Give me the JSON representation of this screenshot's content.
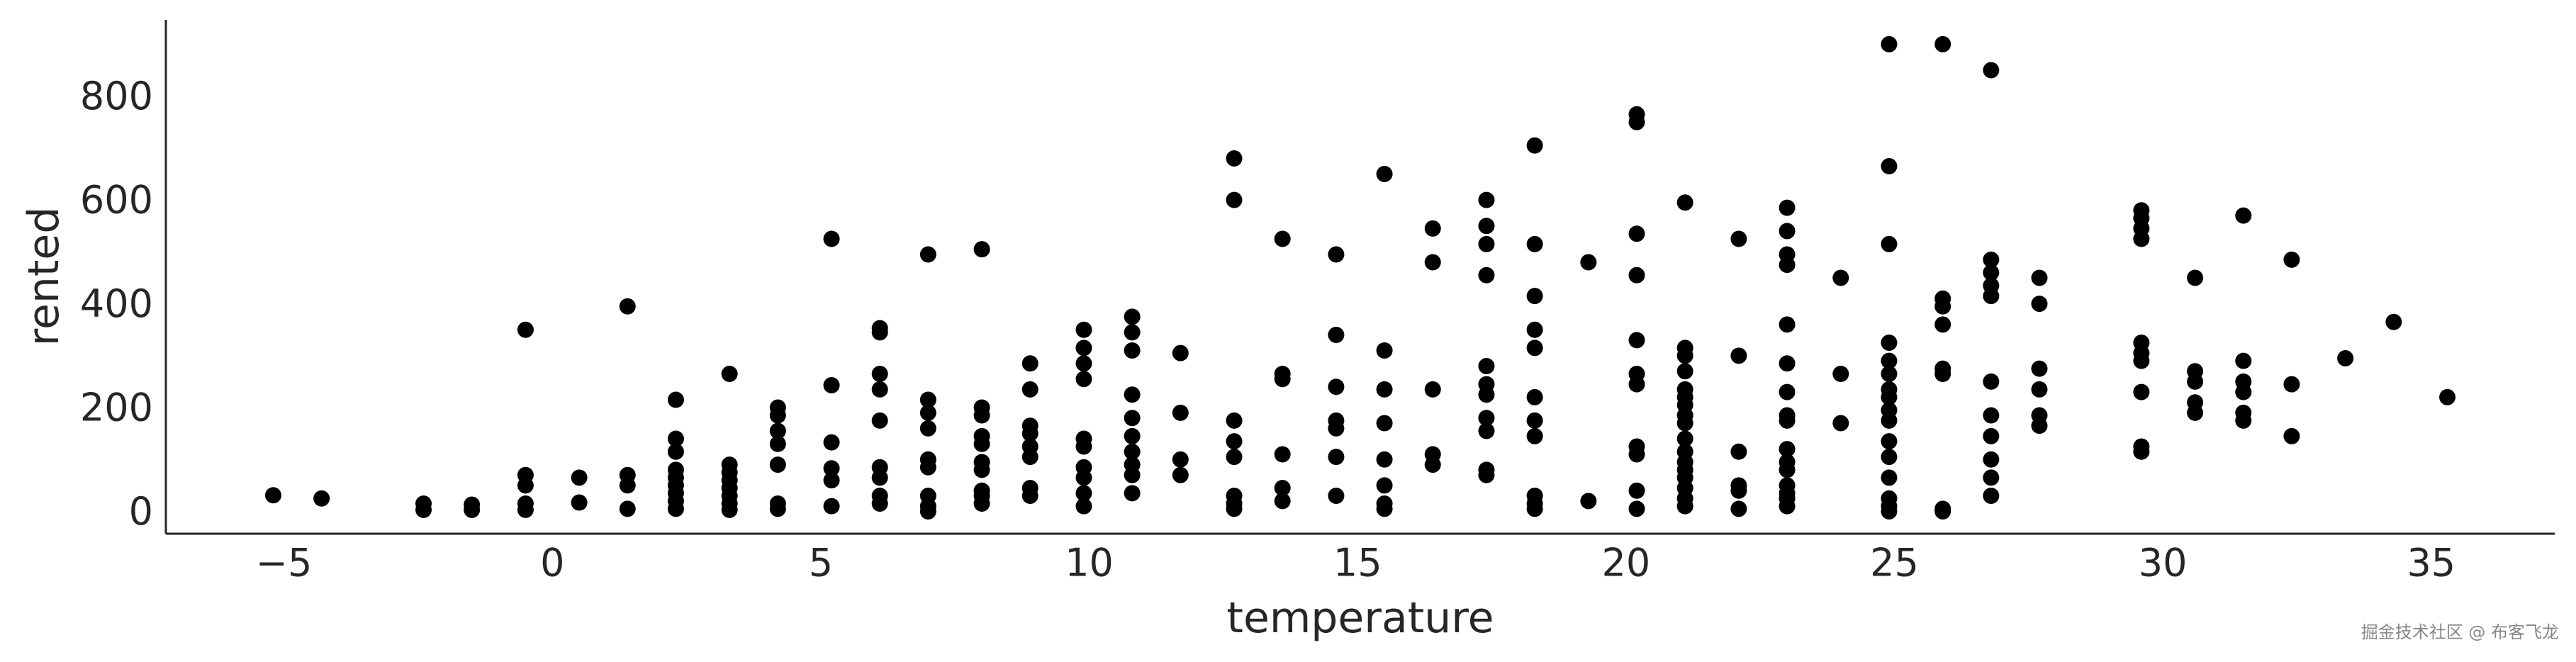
{
  "chart_data": {
    "type": "scatter",
    "x_label": "temperature",
    "y_label": "rented",
    "color": "#000000",
    "x": [
      -5.2,
      -4.3,
      -2.4,
      -2.4,
      -1.5,
      -1.5,
      -0.5,
      -0.5,
      -0.5,
      -0.5,
      -0.5,
      0.5,
      0.5,
      1.4,
      1.4,
      1.4,
      1.4,
      2.3,
      2.3,
      2.3,
      2.3,
      2.3,
      2.3,
      2.3,
      2.3,
      2.3,
      3.3,
      3.3,
      3.3,
      3.3,
      3.3,
      3.3,
      3.3,
      3.3,
      4.2,
      4.2,
      4.2,
      4.2,
      4.2,
      4.2,
      4.2,
      5.2,
      5.2,
      5.2,
      5.2,
      5.2,
      5.2,
      6.1,
      6.1,
      6.1,
      6.1,
      6.1,
      6.1,
      6.1,
      6.1,
      6.1,
      7.0,
      7.0,
      7.0,
      7.0,
      7.0,
      7.0,
      7.0,
      7.0,
      7.0,
      8.0,
      8.0,
      8.0,
      8.0,
      8.0,
      8.0,
      8.0,
      8.0,
      8.0,
      8.0,
      8.9,
      8.9,
      8.9,
      8.9,
      8.9,
      8.9,
      8.9,
      8.9,
      9.9,
      9.9,
      9.9,
      9.9,
      9.9,
      9.9,
      9.9,
      9.9,
      9.9,
      9.9,
      10.8,
      10.8,
      10.8,
      10.8,
      10.8,
      10.8,
      10.8,
      10.8,
      10.8,
      10.8,
      11.7,
      11.7,
      11.7,
      11.7,
      12.7,
      12.7,
      12.7,
      12.7,
      12.7,
      12.7,
      12.7,
      12.7,
      13.6,
      13.6,
      13.6,
      13.6,
      13.6,
      13.6,
      14.6,
      14.6,
      14.6,
      14.6,
      14.6,
      14.6,
      14.6,
      15.5,
      15.5,
      15.5,
      15.5,
      15.5,
      15.5,
      15.5,
      15.5,
      16.4,
      16.4,
      16.4,
      16.4,
      16.4,
      17.4,
      17.4,
      17.4,
      17.4,
      17.4,
      17.4,
      17.4,
      17.4,
      17.4,
      17.4,
      17.4,
      18.3,
      18.3,
      18.3,
      18.3,
      18.3,
      18.3,
      18.3,
      18.3,
      18.3,
      18.3,
      18.3,
      19.3,
      19.3,
      20.2,
      20.2,
      20.2,
      20.2,
      20.2,
      20.2,
      20.2,
      20.2,
      20.2,
      20.2,
      20.2,
      21.1,
      21.1,
      21.1,
      21.1,
      21.1,
      21.1,
      21.1,
      21.1,
      21.1,
      21.1,
      21.1,
      21.1,
      21.1,
      21.1,
      21.1,
      21.1,
      21.1,
      22.1,
      22.1,
      22.1,
      22.1,
      22.1,
      22.1,
      23.0,
      23.0,
      23.0,
      23.0,
      23.0,
      23.0,
      23.0,
      23.0,
      23.0,
      23.0,
      23.0,
      23.0,
      23.0,
      23.0,
      23.0,
      23.0,
      24.0,
      24.0,
      24.0,
      24.9,
      24.9,
      24.9,
      24.9,
      24.9,
      24.9,
      24.9,
      24.9,
      24.9,
      24.9,
      24.9,
      24.9,
      24.9,
      24.9,
      24.9,
      24.9,
      25.9,
      25.9,
      25.9,
      25.9,
      25.9,
      25.9,
      25.9,
      25.9,
      26.8,
      26.8,
      26.8,
      26.8,
      26.8,
      26.8,
      26.8,
      26.8,
      26.8,
      26.8,
      26.8,
      27.7,
      27.7,
      27.7,
      27.7,
      27.7,
      27.7,
      29.6,
      29.6,
      29.6,
      29.6,
      29.6,
      29.6,
      29.6,
      29.6,
      29.6,
      29.6,
      30.6,
      30.6,
      30.6,
      30.6,
      30.6,
      31.5,
      31.5,
      31.5,
      31.5,
      31.5,
      31.5,
      32.4,
      32.4,
      32.4,
      33.4,
      34.3,
      35.3
    ],
    "values": [
      36,
      30,
      20,
      8,
      18,
      8,
      355,
      75,
      55,
      20,
      8,
      70,
      22,
      400,
      75,
      55,
      10,
      220,
      145,
      120,
      85,
      70,
      55,
      40,
      25,
      10,
      270,
      95,
      80,
      65,
      50,
      35,
      20,
      8,
      205,
      190,
      160,
      135,
      95,
      20,
      10,
      530,
      248,
      138,
      88,
      65,
      15,
      358,
      350,
      270,
      240,
      180,
      90,
      70,
      35,
      20,
      500,
      220,
      195,
      165,
      105,
      90,
      35,
      15,
      5,
      510,
      205,
      190,
      150,
      135,
      100,
      85,
      45,
      35,
      20,
      290,
      240,
      170,
      155,
      130,
      110,
      50,
      35,
      355,
      320,
      290,
      260,
      145,
      130,
      90,
      70,
      40,
      15,
      380,
      350,
      315,
      230,
      185,
      150,
      120,
      95,
      75,
      40,
      310,
      195,
      105,
      75,
      685,
      605,
      180,
      140,
      110,
      35,
      20,
      10,
      530,
      270,
      260,
      115,
      50,
      25,
      500,
      345,
      245,
      180,
      165,
      110,
      35,
      655,
      315,
      240,
      175,
      105,
      55,
      20,
      10,
      550,
      485,
      240,
      115,
      95,
      605,
      555,
      520,
      460,
      285,
      250,
      230,
      185,
      160,
      85,
      75,
      710,
      520,
      420,
      355,
      320,
      225,
      180,
      150,
      35,
      20,
      10,
      485,
      25,
      770,
      755,
      540,
      460,
      335,
      270,
      250,
      130,
      115,
      45,
      10,
      600,
      320,
      305,
      275,
      240,
      225,
      210,
      190,
      175,
      145,
      120,
      100,
      85,
      70,
      50,
      30,
      15,
      530,
      305,
      120,
      55,
      45,
      10,
      590,
      545,
      500,
      480,
      365,
      290,
      235,
      190,
      180,
      125,
      100,
      85,
      55,
      40,
      30,
      15,
      455,
      270,
      175,
      905,
      670,
      520,
      330,
      295,
      270,
      240,
      225,
      200,
      180,
      140,
      110,
      70,
      30,
      15,
      5,
      905,
      415,
      400,
      365,
      280,
      270,
      10,
      5,
      855,
      490,
      465,
      440,
      420,
      255,
      190,
      150,
      105,
      70,
      35,
      455,
      405,
      280,
      240,
      190,
      170,
      585,
      570,
      550,
      530,
      330,
      310,
      295,
      235,
      130,
      120,
      455,
      275,
      255,
      215,
      195,
      575,
      295,
      255,
      235,
      195,
      180,
      490,
      250,
      150,
      300,
      370,
      225
    ],
    "xlim": [
      -7.2,
      37.3
    ],
    "ylim": [
      -38,
      952
    ],
    "xticks": [
      {
        "value": -5,
        "label": "−5"
      },
      0,
      5,
      10,
      15,
      20,
      25,
      30,
      35
    ],
    "yticks": [
      0,
      200,
      400,
      600,
      800
    ],
    "grid": false
  },
  "watermark": "掘金技术社区 @ 布客飞龙"
}
